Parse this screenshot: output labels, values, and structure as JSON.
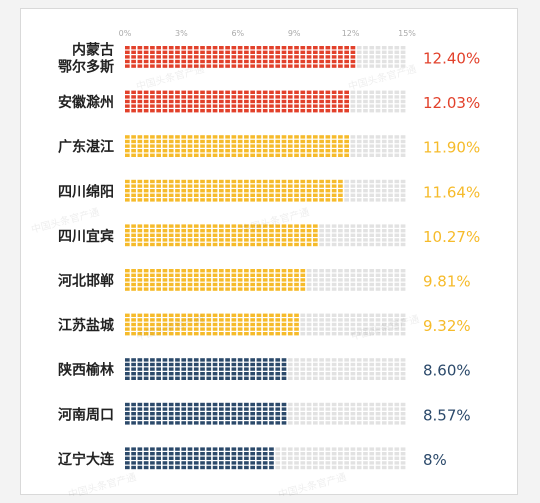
{
  "chart_data": {
    "type": "bar",
    "orientation": "horizontal",
    "style": "waffle",
    "x_ticks": [
      "0%",
      "3%",
      "6%",
      "9%",
      "12%",
      "15%"
    ],
    "xlim": [
      0,
      15
    ],
    "categories": [
      [
        "内蒙古",
        "鄂尔多斯"
      ],
      [
        "安徽滁州"
      ],
      [
        "广东湛江"
      ],
      [
        "四川绵阳"
      ],
      [
        "四川宜宾"
      ],
      [
        "河北邯郸"
      ],
      [
        "江苏盐城"
      ],
      [
        "陕西榆林"
      ],
      [
        "河南周口"
      ],
      [
        "辽宁大连"
      ]
    ],
    "values": [
      12.4,
      12.03,
      11.9,
      11.64,
      10.27,
      9.81,
      9.32,
      8.6,
      8.57,
      8.0
    ],
    "value_labels": [
      "12.40%",
      "12.03%",
      "11.90%",
      "11.64%",
      "10.27%",
      "9.81%",
      "9.32%",
      "8.60%",
      "8.57%",
      "8%"
    ],
    "color_groups": [
      "red",
      "red",
      "yellow",
      "yellow",
      "yellow",
      "yellow",
      "yellow",
      "blue",
      "blue",
      "blue"
    ],
    "colors": {
      "red": "#e2412b",
      "yellow": "#f6bb2b",
      "blue": "#2c4a6b",
      "empty": "#e2e2e2"
    },
    "watermark": "中国头条官产通"
  }
}
